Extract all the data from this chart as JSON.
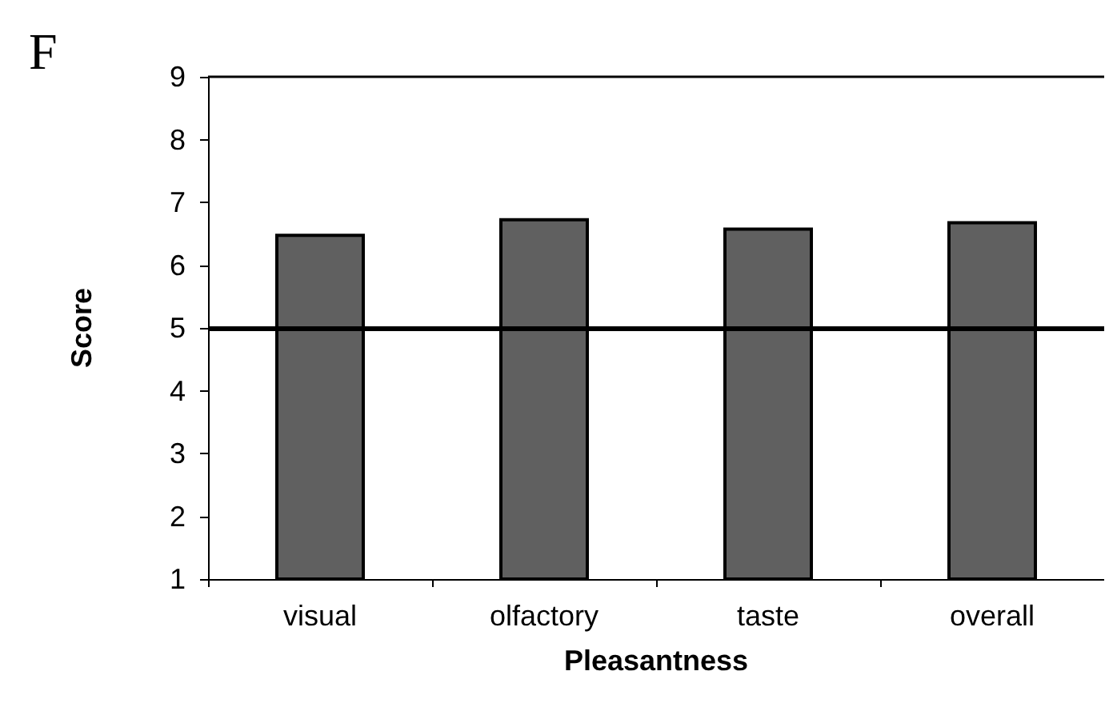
{
  "chart_data": {
    "type": "bar",
    "xlabel": "Pleasantness",
    "ylabel": "Score",
    "annotations": [
      "F"
    ],
    "categories": [
      "visual",
      "olfactory",
      "taste",
      "overall"
    ],
    "values": [
      6.5,
      6.75,
      6.6,
      6.7
    ],
    "color": "#606060",
    "ylim": [
      1,
      9
    ],
    "yticks": [
      1,
      2,
      3,
      4,
      5,
      6,
      7,
      8,
      9
    ],
    "grid": false,
    "ref_lines": [
      {
        "axis": "y",
        "value": 5,
        "color": "#000000"
      }
    ]
  }
}
